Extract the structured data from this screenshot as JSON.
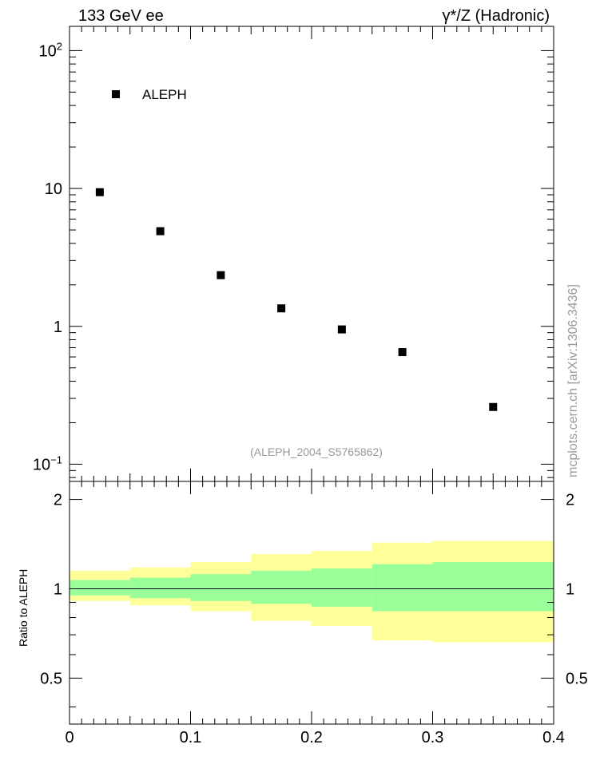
{
  "header": {
    "left": "133 GeV ee",
    "right": "γ*/Z (Hadronic)"
  },
  "side_label": "mcplots.cern.ch [arXiv:1306.3436]",
  "watermark": "(ALEPH_2004_S5765862)",
  "legend": {
    "label": "ALEPH",
    "position": "top-left"
  },
  "chart_data": [
    {
      "type": "scatter",
      "scale_y": "log",
      "xlim": [
        0,
        0.4
      ],
      "ylim": [
        0.075,
        150
      ],
      "y_ticks": [
        {
          "value": 100,
          "base": "10",
          "exp": "2"
        },
        {
          "value": 10,
          "label": "10"
        },
        {
          "value": 1,
          "label": "1"
        },
        {
          "value": 0.1,
          "base": "10",
          "exp": "−1"
        }
      ],
      "series": [
        {
          "name": "ALEPH",
          "color": "#000000",
          "x": [
            0.025,
            0.075,
            0.125,
            0.175,
            0.225,
            0.275,
            0.35
          ],
          "y": [
            9.4,
            4.9,
            2.35,
            1.35,
            0.95,
            0.65,
            0.26
          ]
        }
      ]
    },
    {
      "type": "area",
      "ylabel": "Ratio to ALEPH",
      "xlim": [
        0,
        0.4
      ],
      "ylim": [
        0.35,
        2.3
      ],
      "x_ticks": [
        "0",
        "0.1",
        "0.2",
        "0.3",
        "0.4"
      ],
      "y_ticks": [
        "0.5",
        "1",
        "2"
      ],
      "y_tick_values": [
        0.5,
        1,
        2
      ],
      "reference_line": 1,
      "bands": {
        "bin_edges": [
          0,
          0.05,
          0.1,
          0.15,
          0.2,
          0.25,
          0.3,
          0.4
        ],
        "yellow": {
          "color": "#ffff99",
          "low": [
            0.91,
            0.88,
            0.84,
            0.78,
            0.75,
            0.67,
            0.66
          ],
          "high": [
            1.15,
            1.18,
            1.23,
            1.31,
            1.34,
            1.43,
            1.45
          ]
        },
        "green": {
          "color": "#99ff99",
          "low": [
            0.95,
            0.93,
            0.91,
            0.89,
            0.87,
            0.84,
            0.84
          ],
          "high": [
            1.07,
            1.09,
            1.12,
            1.15,
            1.17,
            1.21,
            1.23
          ]
        }
      }
    }
  ]
}
